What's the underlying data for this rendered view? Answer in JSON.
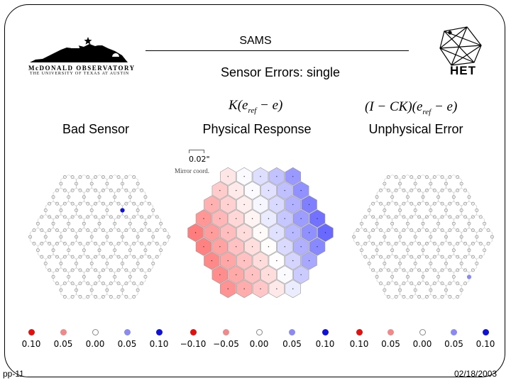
{
  "header": {
    "title": "SAMS",
    "subtitle": "Sensor Errors: single",
    "logo_left_line1": "McDONALD OBSERVATORY",
    "logo_left_line2": "THE UNIVERSITY OF TEXAS AT AUSTIN",
    "logo_right_text": "HET"
  },
  "equations": {
    "physical_K": "K",
    "physical_body": "(e",
    "physical_sub": "ref",
    "physical_tail": " − e)",
    "unphysical_head": "(I − CK)(e",
    "unphysical_sub": "ref",
    "unphysical_tail": " − e)"
  },
  "panels": {
    "bad_sensor": "Bad Sensor",
    "physical_response": "Physical Response",
    "unphysical_error": "Unphysical Error"
  },
  "scale": {
    "value": "0.02\"",
    "label": "Mirror coord."
  },
  "legends": [
    {
      "items": [
        {
          "value": "0.10",
          "color": "#e31010"
        },
        {
          "value": "0.05",
          "color": "#ef8a8a"
        },
        {
          "value": "0.00",
          "color": "#ffffff"
        },
        {
          "value": "0.05",
          "color": "#8a8aef"
        },
        {
          "value": "0.10",
          "color": "#1010d8"
        }
      ]
    },
    {
      "items": [
        {
          "value": "−0.10",
          "color": "#e31010"
        },
        {
          "value": "−0.05",
          "color": "#ef8a8a"
        },
        {
          "value": "0.00",
          "color": "#ffffff"
        },
        {
          "value": "0.05",
          "color": "#8a8aef"
        },
        {
          "value": "0.10",
          "color": "#1010d8"
        }
      ]
    },
    {
      "items": [
        {
          "value": "0.10",
          "color": "#e31010"
        },
        {
          "value": "0.05",
          "color": "#ef8a8a"
        },
        {
          "value": "0.00",
          "color": "#ffffff"
        },
        {
          "value": "0.05",
          "color": "#8a8aef"
        },
        {
          "value": "0.10",
          "color": "#1010d8"
        }
      ]
    }
  ],
  "footer": {
    "page": "pp-11",
    "date": "02/18/2003"
  }
}
